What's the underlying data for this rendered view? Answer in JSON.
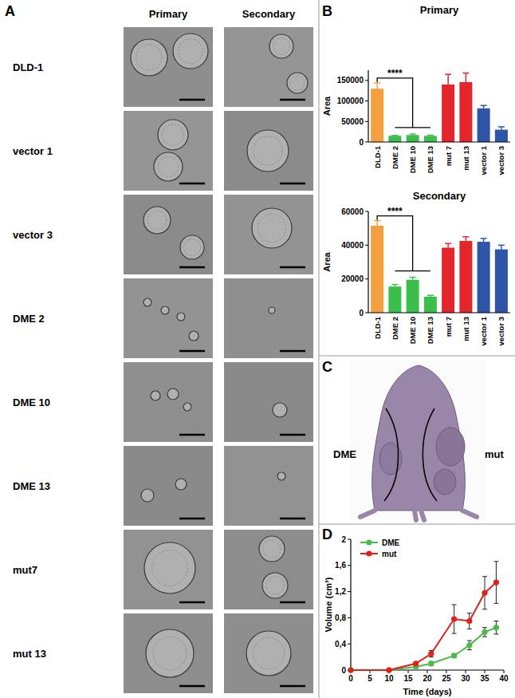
{
  "panels": {
    "labels": [
      "A",
      "B",
      "C",
      "D"
    ]
  },
  "panel_a": {
    "columns": [
      "Primary",
      "Secondary"
    ],
    "rows": [
      "DLD-1",
      "vector 1",
      "vector 3",
      "DME 2",
      "DME 10",
      "DME 13",
      "mut7",
      "mut 13"
    ]
  },
  "panel_c": {
    "labels": [
      "DME",
      "mut"
    ]
  },
  "chart_data": [
    {
      "type": "bar",
      "title": "Primary",
      "y_label": "Area",
      "categories": [
        "DLD-1",
        "DME 2",
        "DME 10",
        "DME 13",
        "mut 7",
        "mut 13",
        "vector 1",
        "vector 3"
      ],
      "values": [
        130000,
        15000,
        17000,
        15000,
        140000,
        146000,
        82000,
        30000
      ],
      "error": [
        14000,
        1000,
        2500,
        1500,
        25000,
        22000,
        7000,
        7000
      ],
      "colors": [
        "#f5a040",
        "#3cbf4a",
        "#3cbf4a",
        "#3cbf4a",
        "#e3262b",
        "#e3262b",
        "#2f55a8",
        "#2f55a8"
      ],
      "ylim": [
        0,
        175000
      ],
      "yticks": [
        0,
        50000,
        100000,
        150000
      ],
      "grid": false,
      "annotation": "****"
    },
    {
      "type": "bar",
      "title": "Secondary",
      "y_label": "Area",
      "categories": [
        "DLD-1",
        "DME 2",
        "DME 10",
        "DME 13",
        "mut 7",
        "mut 13",
        "vector 1",
        "vector 3"
      ],
      "values": [
        51500,
        15500,
        19500,
        9500,
        38500,
        42500,
        42000,
        37500
      ],
      "error": [
        3000,
        1200,
        1500,
        800,
        2500,
        2500,
        2000,
        2500
      ],
      "colors": [
        "#f5a040",
        "#3cbf4a",
        "#3cbf4a",
        "#3cbf4a",
        "#e3262b",
        "#e3262b",
        "#2f55a8",
        "#2f55a8"
      ],
      "ylim": [
        0,
        60000
      ],
      "yticks": [
        0,
        20000,
        40000,
        60000
      ],
      "grid": false,
      "annotation": "****"
    },
    {
      "type": "line",
      "x_label": "Time (days)",
      "y_label": "Volume (cm³)",
      "x": [
        0,
        10,
        17,
        21,
        27,
        31,
        35,
        38
      ],
      "series": [
        {
          "name": "DME",
          "color": "#4cbb47",
          "marker": "circle",
          "values": [
            0,
            0,
            0.05,
            0.1,
            0.22,
            0.38,
            0.58,
            0.65
          ],
          "error": [
            0,
            0,
            0.01,
            0.03,
            0.03,
            0.07,
            0.07,
            0.1
          ]
        },
        {
          "name": "mut",
          "color": "#e0201b",
          "marker": "circle",
          "values": [
            0,
            0,
            0.1,
            0.25,
            0.78,
            0.75,
            1.18,
            1.34
          ],
          "error": [
            0,
            0,
            0.02,
            0.05,
            0.22,
            0.12,
            0.25,
            0.32
          ]
        }
      ],
      "xlim": [
        0,
        40
      ],
      "xticks": [
        0,
        5,
        10,
        15,
        20,
        25,
        30,
        35,
        40
      ],
      "ylim": [
        0,
        2
      ],
      "yticks": [
        0,
        {
          "value": 0.4,
          "label": "0,4"
        },
        {
          "value": 0.8,
          "label": "0,8"
        },
        {
          "value": 1.2,
          "label": "1,2"
        },
        {
          "value": 1.6,
          "label": "1,6"
        },
        2
      ],
      "grid": false,
      "legend": "upper left"
    }
  ]
}
